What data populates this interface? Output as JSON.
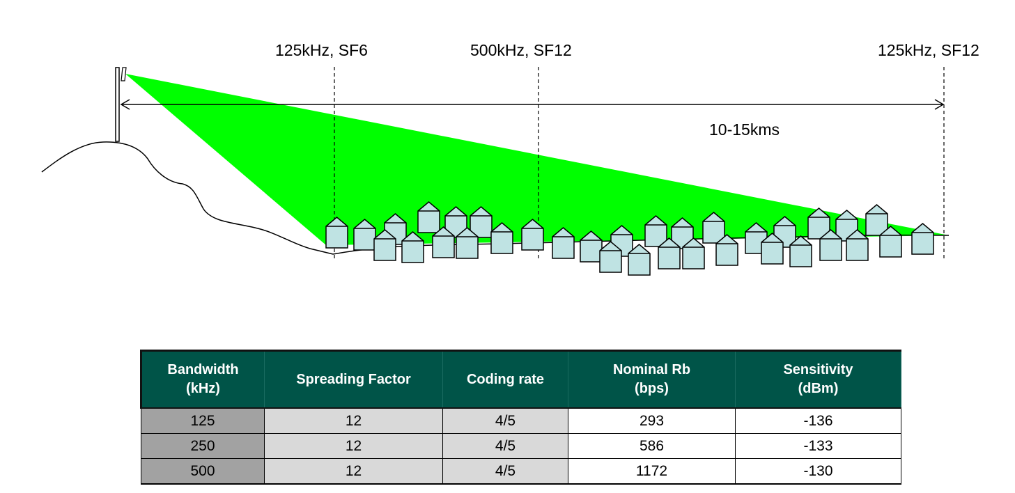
{
  "diagram": {
    "markers": [
      {
        "label": "125kHz, SF6"
      },
      {
        "label": "500kHz, SF12"
      },
      {
        "label": "125kHz, SF12"
      }
    ],
    "range_label": "10-15kms",
    "coverage_color": "#00ff00",
    "house_color": "#bfe3e3"
  },
  "table": {
    "headers": [
      [
        "Bandwidth",
        "(kHz)"
      ],
      [
        "Spreading Factor"
      ],
      [
        "Coding rate"
      ],
      [
        "Nominal Rb",
        "(bps)"
      ],
      [
        "Sensitivity",
        "(dBm)"
      ]
    ],
    "rows": [
      [
        "125",
        "12",
        "4/5",
        "293",
        "-136"
      ],
      [
        "250",
        "12",
        "4/5",
        "586",
        "-133"
      ],
      [
        "500",
        "12",
        "4/5",
        "1172",
        "-130"
      ]
    ],
    "header_color": "#005448"
  }
}
